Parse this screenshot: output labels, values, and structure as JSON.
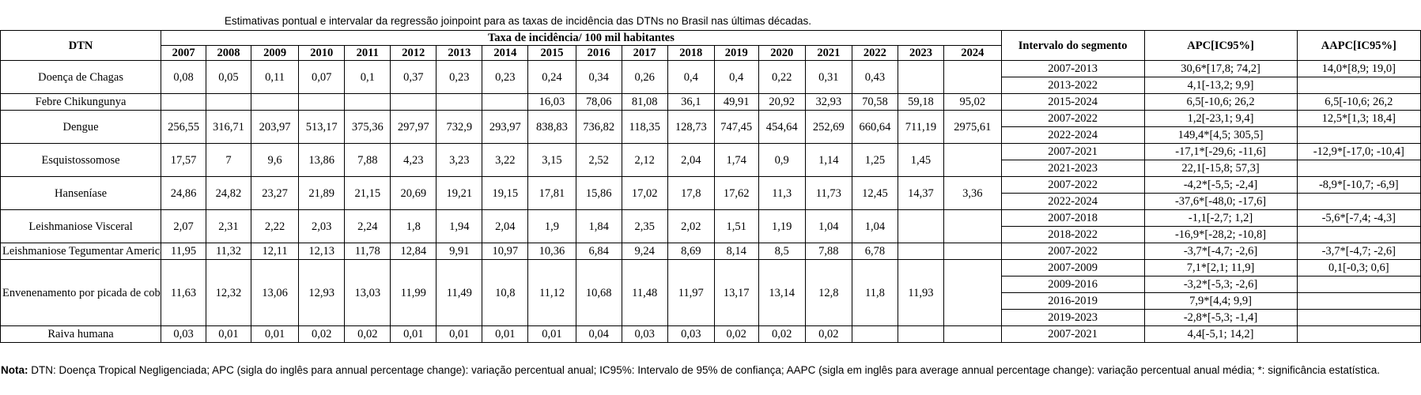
{
  "caption": "Estimativas pontual e intervalar  da regressão joinpoint para as taxas de incidência das DTNs no Brasil nas últimas décadas.",
  "headers": {
    "dtn": "DTN",
    "rate_group": "Taxa de incidência/ 100 mil habitantes",
    "segment": "Intervalo do segmento",
    "apc": "APC[IC95%]",
    "aapc": "AAPC[IC95%]",
    "years": [
      "2007",
      "2008",
      "2009",
      "2010",
      "2011",
      "2012",
      "2013",
      "2014",
      "2015",
      "2016",
      "2017",
      "2018",
      "2019",
      "2020",
      "2021",
      "2022",
      "2023",
      "2024"
    ]
  },
  "diseases": [
    {
      "name": "Doença de Chagas",
      "rates": [
        "0,08",
        "0,05",
        "0,11",
        "0,07",
        "0,1",
        "0,37",
        "0,23",
        "0,23",
        "0,24",
        "0,34",
        "0,26",
        "0,4",
        "0,4",
        "0,22",
        "0,31",
        "0,43",
        "",
        ""
      ],
      "aapc": "14,0*[8,9; 19,0]",
      "segments": [
        {
          "interval": "2007-2013",
          "apc": "30,6*[17,8; 74,2]"
        },
        {
          "interval": "2013-2022",
          "apc": "4,1[-13,2; 9,9]"
        }
      ]
    },
    {
      "name": "Febre Chikungunya",
      "rates": [
        "",
        "",
        "",
        "",
        "",
        "",
        "",
        "",
        "16,03",
        "78,06",
        "81,08",
        "36,1",
        "49,91",
        "20,92",
        "32,93",
        "70,58",
        "59,18",
        "95,02"
      ],
      "aapc": "6,5[-10,6; 26,2",
      "segments": [
        {
          "interval": "2015-2024",
          "apc": "6,5[-10,6; 26,2"
        }
      ]
    },
    {
      "name": "Dengue",
      "rates": [
        "256,55",
        "316,71",
        "203,97",
        "513,17",
        "375,36",
        "297,97",
        "732,9",
        "293,97",
        "838,83",
        "736,82",
        "118,35",
        "128,73",
        "747,45",
        "454,64",
        "252,69",
        "660,64",
        "711,19",
        "2975,61"
      ],
      "aapc": "12,5*[1,3; 18,4]",
      "segments": [
        {
          "interval": "2007-2022",
          "apc": "1,2[-23,1; 9,4]"
        },
        {
          "interval": "2022-2024",
          "apc": "149,4*[4,5; 305,5]"
        }
      ]
    },
    {
      "name": "Esquistossomose",
      "rates": [
        "17,57",
        "7",
        "9,6",
        "13,86",
        "7,88",
        "4,23",
        "3,23",
        "3,22",
        "3,15",
        "2,52",
        "2,12",
        "2,04",
        "1,74",
        "0,9",
        "1,14",
        "1,25",
        "1,45",
        ""
      ],
      "aapc": "-12,9*[-17,0; -10,4]",
      "segments": [
        {
          "interval": "2007-2021",
          "apc": "-17,1*[-29,6; -11,6]"
        },
        {
          "interval": "2021-2023",
          "apc": "22,1[-15,8; 57,3]"
        }
      ]
    },
    {
      "name": "Hanseníase",
      "rates": [
        "24,86",
        "24,82",
        "23,27",
        "21,89",
        "21,15",
        "20,69",
        "19,21",
        "19,15",
        "17,81",
        "15,86",
        "17,02",
        "17,8",
        "17,62",
        "11,3",
        "11,73",
        "12,45",
        "14,37",
        "3,36"
      ],
      "aapc": "-8,9*[-10,7; -6,9]",
      "segments": [
        {
          "interval": "2007-2022",
          "apc": "-4,2*[-5,5; -2,4]"
        },
        {
          "interval": "2022-2024",
          "apc": "-37,6*[-48,0; -17,6]"
        }
      ]
    },
    {
      "name": "Leishmaniose Visceral",
      "rates": [
        "2,07",
        "2,31",
        "2,22",
        "2,03",
        "2,24",
        "1,8",
        "1,94",
        "2,04",
        "1,9",
        "1,84",
        "2,35",
        "2,02",
        "1,51",
        "1,19",
        "1,04",
        "1,04",
        "",
        ""
      ],
      "aapc": "-5,6*[-7,4; -4,3]",
      "segments": [
        {
          "interval": "2007-2018",
          "apc": "-1,1[-2,7; 1,2]"
        },
        {
          "interval": "2018-2022",
          "apc": "-16,9*[-28,2; -10,8]"
        }
      ]
    },
    {
      "name": "Leishmaniose Tegumentar Americana",
      "rates": [
        "11,95",
        "11,32",
        "12,11",
        "12,13",
        "11,78",
        "12,84",
        "9,91",
        "10,97",
        "10,36",
        "6,84",
        "9,24",
        "8,69",
        "8,14",
        "8,5",
        "7,88",
        "6,78",
        "",
        ""
      ],
      "aapc": "-3,7*[-4,7; -2,6]",
      "segments": [
        {
          "interval": "2007-2022",
          "apc": "-3,7*[-4,7; -2,6]"
        }
      ]
    },
    {
      "name": "Envenenamento por picada de cobra",
      "rates": [
        "11,63",
        "12,32",
        "13,06",
        "12,93",
        "13,03",
        "11,99",
        "11,49",
        "10,8",
        "11,12",
        "10,68",
        "11,48",
        "11,97",
        "13,17",
        "13,14",
        "12,8",
        "11,8",
        "11,93",
        ""
      ],
      "aapc": "0,1[-0,3; 0,6]",
      "segments": [
        {
          "interval": "2007-2009",
          "apc": "7,1*[2,1; 11,9]"
        },
        {
          "interval": "2009-2016",
          "apc": "-3,2*[-5,3; -2,6]"
        },
        {
          "interval": "2016-2019",
          "apc": "7,9*[4,4; 9,9]"
        },
        {
          "interval": "2019-2023",
          "apc": "-2,8*[-5,3; -1,4]"
        }
      ]
    },
    {
      "name": "Raiva humana",
      "rates": [
        "0,03",
        "0,01",
        "0,01",
        "0,02",
        "0,02",
        "0,01",
        "0,01",
        "0,01",
        "0,01",
        "0,04",
        "0,03",
        "0,03",
        "0,02",
        "0,02",
        "0,02",
        "",
        "",
        ""
      ],
      "aapc": "",
      "segments": [
        {
          "interval": "2007-2021",
          "apc": "4,4[-5,1; 14,2]"
        }
      ]
    }
  ],
  "note": {
    "label": "Nota:",
    "text": " DTN: Doença Tropical Negligenciada; APC (sigla do inglês para annual percentage change): variação percentual anual; IC95%: Intervalo de 95% de confiança; AAPC (sigla em inglês para average annual percentage change): variação percentual anual média; *: significância estatística."
  }
}
